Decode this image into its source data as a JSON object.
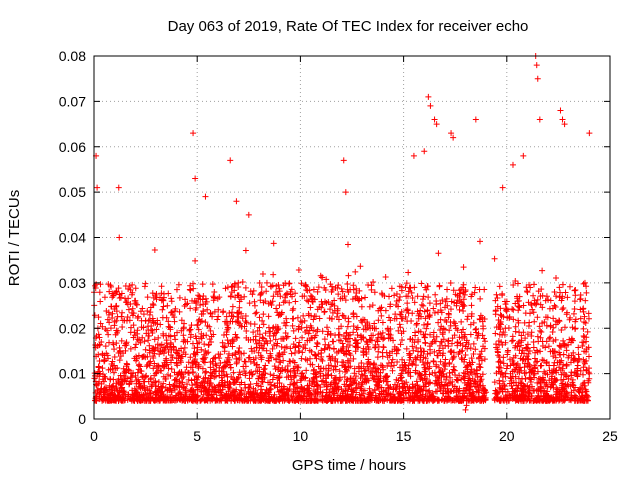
{
  "chart_data": {
    "type": "scatter",
    "title": "Day 063 of 2019, Rate Of TEC Index for receiver echo",
    "xlabel": "GPS time / hours",
    "ylabel": "ROTI / TECUs",
    "xlim": [
      0,
      25
    ],
    "ylim": [
      0,
      0.08
    ],
    "x_ticks": [
      "0",
      "5",
      "10",
      "15",
      "20",
      "25"
    ],
    "y_ticks": [
      "0",
      "0.01",
      "0.02",
      "0.03",
      "0.04",
      "0.05",
      "0.06",
      "0.07",
      "0.08"
    ],
    "grid": true,
    "marker": "plus",
    "color": "#ff0000",
    "data_coverage_hours": [
      0,
      24
    ],
    "data_gap_hours": [
      19.0,
      19.4
    ],
    "typical_range": [
      0.004,
      0.03
    ],
    "notable_points": [
      {
        "x": 0.1,
        "y": 0.058
      },
      {
        "x": 0.15,
        "y": 0.051
      },
      {
        "x": 1.2,
        "y": 0.051
      },
      {
        "x": 4.8,
        "y": 0.063
      },
      {
        "x": 4.9,
        "y": 0.053
      },
      {
        "x": 5.4,
        "y": 0.049
      },
      {
        "x": 6.6,
        "y": 0.057
      },
      {
        "x": 6.9,
        "y": 0.048
      },
      {
        "x": 7.5,
        "y": 0.045
      },
      {
        "x": 12.1,
        "y": 0.057
      },
      {
        "x": 12.2,
        "y": 0.05
      },
      {
        "x": 15.5,
        "y": 0.058
      },
      {
        "x": 16.0,
        "y": 0.059
      },
      {
        "x": 16.2,
        "y": 0.071
      },
      {
        "x": 16.3,
        "y": 0.069
      },
      {
        "x": 16.5,
        "y": 0.066
      },
      {
        "x": 16.6,
        "y": 0.065
      },
      {
        "x": 17.3,
        "y": 0.063
      },
      {
        "x": 17.4,
        "y": 0.062
      },
      {
        "x": 18.5,
        "y": 0.066
      },
      {
        "x": 19.8,
        "y": 0.051
      },
      {
        "x": 20.3,
        "y": 0.056
      },
      {
        "x": 20.8,
        "y": 0.058
      },
      {
        "x": 21.4,
        "y": 0.08
      },
      {
        "x": 21.45,
        "y": 0.078
      },
      {
        "x": 21.5,
        "y": 0.075
      },
      {
        "x": 21.6,
        "y": 0.066
      },
      {
        "x": 22.6,
        "y": 0.068
      },
      {
        "x": 22.7,
        "y": 0.066
      },
      {
        "x": 22.8,
        "y": 0.065
      },
      {
        "x": 24.0,
        "y": 0.063
      },
      {
        "x": 18.0,
        "y": 0.002
      },
      {
        "x": 18.05,
        "y": 0.003
      }
    ]
  }
}
